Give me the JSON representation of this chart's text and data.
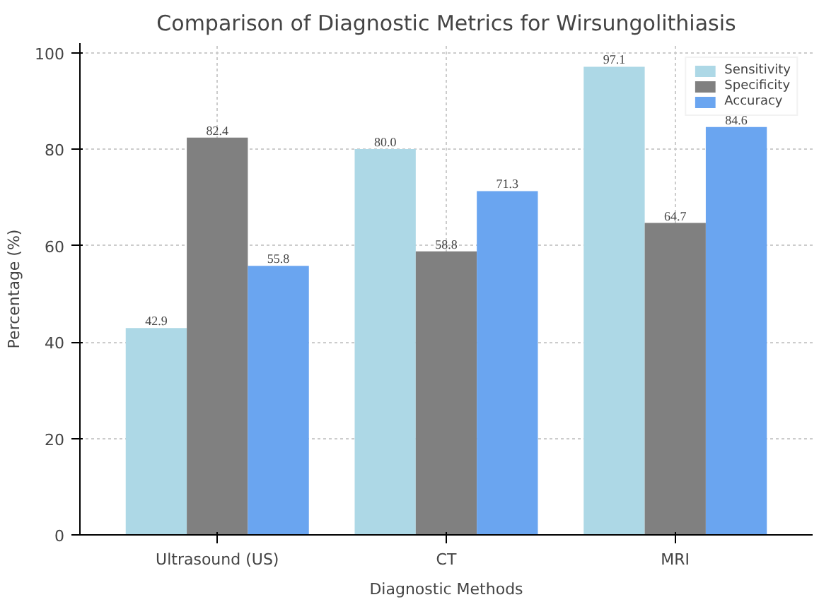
{
  "chart_data": {
    "type": "bar",
    "title": "Comparison of Diagnostic Metrics for Wirsungolithiasis",
    "xlabel": "Diagnostic Methods",
    "ylabel": "Percentage (%)",
    "categories": [
      "Ultrasound (US)",
      "CT",
      "MRI"
    ],
    "series": [
      {
        "name": "Sensitivity",
        "color": "#add8e6",
        "values": [
          42.9,
          80.0,
          97.1
        ],
        "value_labels": [
          "42.9",
          "80.0",
          "97.1"
        ]
      },
      {
        "name": "Specificity",
        "color": "#808080",
        "values": [
          82.4,
          58.8,
          64.7
        ],
        "value_labels": [
          "82.4",
          "58.8",
          "64.7"
        ]
      },
      {
        "name": "Accuracy",
        "color": "#6aa5f0",
        "values": [
          55.8,
          71.3,
          84.6
        ],
        "value_labels": [
          "55.8",
          "71.3",
          "84.6"
        ]
      }
    ],
    "ylim": [
      0,
      102
    ],
    "yticks": [
      0,
      20,
      40,
      60,
      80,
      100
    ],
    "grid": true,
    "legend": "top right"
  }
}
